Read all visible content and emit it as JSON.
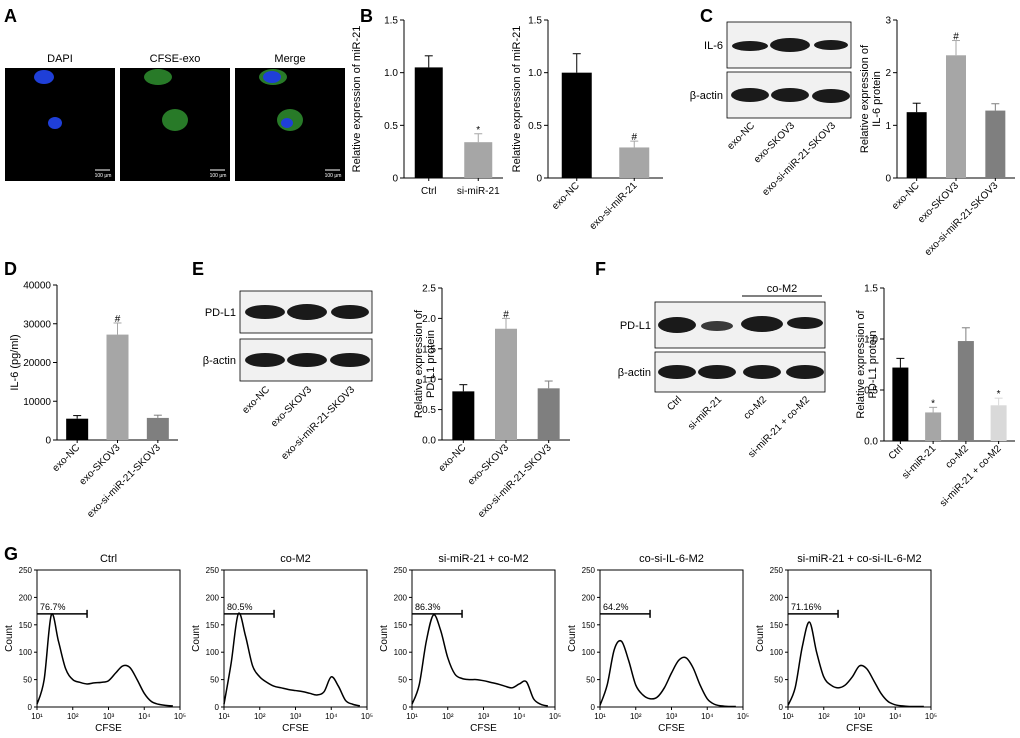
{
  "panels": {
    "A": {
      "letter": "A",
      "images": [
        {
          "label": "DAPI",
          "scale_label": "100 μm"
        },
        {
          "label": "CFSE-exo",
          "scale_label": "100 μm"
        },
        {
          "label": "Merge",
          "scale_label": "100 μm"
        }
      ]
    },
    "B": {
      "letter": "B"
    },
    "C": {
      "letter": "C",
      "blot": {
        "bands": [
          "IL-6",
          "β-actin"
        ],
        "lanes": [
          "exo-NC",
          "exo-SKOV3",
          "exo-si-miR-21-SKOV3"
        ]
      }
    },
    "D": {
      "letter": "D"
    },
    "E": {
      "letter": "E",
      "blot": {
        "bands": [
          "PD-L1",
          "β-actin"
        ],
        "lanes": [
          "exo-NC",
          "exo-SKOV3",
          "exo-si-miR-21-SKOV3"
        ]
      }
    },
    "F": {
      "letter": "F",
      "blot": {
        "bands": [
          "PD-L1",
          "β-actin"
        ],
        "lanes": [
          "Ctrl",
          "si-miR-21",
          "co-M2",
          "si-miR-21 + co-M2"
        ],
        "bracket_label": "co-M2"
      }
    },
    "G": {
      "letter": "G"
    }
  },
  "colors": {
    "black": "#000000",
    "gray1": "#a6a6a6",
    "gray2": "#7f7f7f",
    "gray3": "#d9d9d9",
    "dapi": "#1f3fd8",
    "cfse": "#3fb03f",
    "blot_bg": "#f1f1f1",
    "band": "#1a1a1a"
  },
  "chart_data": [
    {
      "id": "B1",
      "type": "bar",
      "ylabel": "Relative expression of miR-21",
      "categories": [
        "Ctrl",
        "si-miR-21"
      ],
      "values": [
        1.05,
        0.34
      ],
      "errors": [
        0.11,
        0.08
      ],
      "bar_colors": [
        "black",
        "gray1"
      ],
      "annotations": [
        "",
        "*"
      ],
      "ylim": [
        0,
        1.5
      ],
      "yticks": [
        "0",
        "0.5",
        "1.0",
        "1.5"
      ],
      "rotate_labels": false
    },
    {
      "id": "B2",
      "type": "bar",
      "ylabel": "Relative expression of miR-21",
      "categories": [
        "exo-NC",
        "exo-si-miR-21"
      ],
      "values": [
        1.0,
        0.29
      ],
      "errors": [
        0.18,
        0.06
      ],
      "bar_colors": [
        "black",
        "gray1"
      ],
      "annotations": [
        "",
        "#"
      ],
      "ylim": [
        0,
        1.5
      ],
      "yticks": [
        "0",
        "0.5",
        "1.0",
        "1.5"
      ],
      "rotate_labels": true
    },
    {
      "id": "C",
      "type": "bar",
      "ylabel": "Relative expression of IL-6 protein",
      "categories": [
        "exo-NC",
        "exo-SKOV3",
        "exo-si-miR-21-SKOV3"
      ],
      "values": [
        1.25,
        2.33,
        1.28
      ],
      "errors": [
        0.17,
        0.28,
        0.13
      ],
      "bar_colors": [
        "black",
        "gray1",
        "gray2"
      ],
      "annotations": [
        "",
        "#",
        ""
      ],
      "ylim": [
        0,
        3
      ],
      "yticks": [
        "0",
        "1",
        "2",
        "3"
      ],
      "rotate_labels": true
    },
    {
      "id": "D",
      "type": "bar",
      "ylabel": "IL-6 (pg/ml)",
      "categories": [
        "exo-NC",
        "exo-SKOV3",
        "exo-si-miR-21-SKOV3"
      ],
      "values": [
        5500,
        27200,
        5700
      ],
      "errors": [
        800,
        3000,
        700
      ],
      "bar_colors": [
        "black",
        "gray1",
        "gray2"
      ],
      "annotations": [
        "",
        "#",
        ""
      ],
      "ylim": [
        0,
        40000
      ],
      "yticks": [
        "0",
        "10000",
        "20000",
        "30000",
        "40000"
      ],
      "rotate_labels": true
    },
    {
      "id": "E",
      "type": "bar",
      "ylabel": "Relative expression of PD-L1 protein",
      "categories": [
        "exo-NC",
        "exo-SKOV3",
        "exo-si-miR-21-SKOV3"
      ],
      "values": [
        0.8,
        1.83,
        0.85
      ],
      "errors": [
        0.11,
        0.17,
        0.12
      ],
      "bar_colors": [
        "black",
        "gray1",
        "gray2"
      ],
      "annotations": [
        "",
        "#",
        ""
      ],
      "ylim": [
        0,
        2.5
      ],
      "yticks": [
        "0.0",
        "0.5",
        "1.0",
        "1.5",
        "2.0",
        "2.5"
      ],
      "rotate_labels": true
    },
    {
      "id": "F",
      "type": "bar",
      "ylabel": "Relative expression of PD-L1 protein",
      "categories": [
        "Ctrl",
        "si-miR-21",
        "co-M2",
        "si-miR-21 + co-M2"
      ],
      "values": [
        0.72,
        0.28,
        0.98,
        0.35
      ],
      "errors": [
        0.09,
        0.05,
        0.13,
        0.07
      ],
      "bar_colors": [
        "black",
        "gray1",
        "gray2",
        "gray3"
      ],
      "annotations": [
        "",
        "*",
        "",
        "*"
      ],
      "ylim": [
        0,
        1.5
      ],
      "yticks": [
        "0.0",
        "0.5",
        "1.0",
        "1.5"
      ],
      "rotate_labels": true
    },
    {
      "id": "G1",
      "type": "line",
      "title": "Ctrl",
      "gate_label": "76.7%",
      "xlabel": "CFSE",
      "ylabel": "Count",
      "x": [
        1,
        1.2,
        1.4,
        1.6,
        1.8,
        2.0,
        2.2,
        2.4,
        2.6,
        2.8,
        3.0,
        3.2,
        3.4,
        3.6,
        3.8,
        4.0,
        4.2,
        4.4,
        4.6,
        4.8
      ],
      "y": [
        5,
        50,
        168,
        120,
        70,
        50,
        45,
        42,
        44,
        45,
        48,
        62,
        75,
        72,
        50,
        25,
        10,
        5,
        3,
        2
      ],
      "xlim": [
        1,
        5
      ],
      "ylim": [
        0,
        250
      ],
      "yticks": [
        "0",
        "50",
        "100",
        "150",
        "200",
        "250"
      ],
      "xticks": [
        "10¹",
        "10²",
        "10³",
        "10⁴",
        "10⁵"
      ]
    },
    {
      "id": "G2",
      "type": "line",
      "title": "co-M2",
      "gate_label": "80.5%",
      "xlabel": "CFSE",
      "ylabel": "Count",
      "x": [
        1,
        1.2,
        1.4,
        1.6,
        1.8,
        2.0,
        2.2,
        2.4,
        2.6,
        2.8,
        3.0,
        3.2,
        3.4,
        3.6,
        3.8,
        4.0,
        4.2,
        4.4,
        4.6,
        4.8
      ],
      "y": [
        5,
        80,
        170,
        130,
        75,
        55,
        45,
        38,
        35,
        32,
        30,
        28,
        25,
        22,
        28,
        55,
        38,
        12,
        5,
        2
      ],
      "xlim": [
        1,
        5
      ],
      "ylim": [
        0,
        250
      ],
      "yticks": [
        "0",
        "50",
        "100",
        "150",
        "200",
        "250"
      ],
      "xticks": [
        "10¹",
        "10²",
        "10³",
        "10⁴",
        "10⁵"
      ]
    },
    {
      "id": "G3",
      "type": "line",
      "title": "si-miR-21 + co-M2",
      "gate_label": "86.3%",
      "xlabel": "CFSE",
      "ylabel": "Count",
      "x": [
        1,
        1.2,
        1.4,
        1.6,
        1.8,
        2.0,
        2.2,
        2.4,
        2.6,
        2.8,
        3.0,
        3.2,
        3.4,
        3.6,
        3.8,
        4.0,
        4.2,
        4.4,
        4.6,
        4.8
      ],
      "y": [
        5,
        40,
        120,
        168,
        140,
        90,
        60,
        52,
        50,
        50,
        48,
        45,
        42,
        38,
        35,
        42,
        46,
        15,
        5,
        2
      ],
      "xlim": [
        1,
        5
      ],
      "ylim": [
        0,
        250
      ],
      "yticks": [
        "0",
        "50",
        "100",
        "150",
        "200",
        "250"
      ],
      "xticks": [
        "10¹",
        "10²",
        "10³",
        "10⁴",
        "10⁵"
      ]
    },
    {
      "id": "G4",
      "type": "line",
      "title": "co-si-IL-6-M2",
      "gate_label": "64.2%",
      "xlabel": "CFSE",
      "ylabel": "Count",
      "x": [
        1,
        1.2,
        1.4,
        1.6,
        1.8,
        2.0,
        2.2,
        2.4,
        2.6,
        2.8,
        3.0,
        3.2,
        3.4,
        3.6,
        3.8,
        4.0,
        4.2,
        4.4,
        4.6,
        4.8
      ],
      "y": [
        3,
        40,
        105,
        120,
        85,
        40,
        22,
        15,
        18,
        35,
        62,
        85,
        90,
        72,
        40,
        15,
        5,
        2,
        1,
        1
      ],
      "xlim": [
        1,
        5
      ],
      "ylim": [
        0,
        250
      ],
      "yticks": [
        "0",
        "50",
        "100",
        "150",
        "200",
        "250"
      ],
      "xticks": [
        "10¹",
        "10²",
        "10³",
        "10⁴",
        "10⁵"
      ]
    },
    {
      "id": "G5",
      "type": "line",
      "title": "si-miR-21 + co-si-IL-6-M2",
      "gate_label": "71.16%",
      "xlabel": "CFSE",
      "ylabel": "Count",
      "x": [
        1,
        1.2,
        1.4,
        1.6,
        1.8,
        2.0,
        2.2,
        2.4,
        2.6,
        2.8,
        3.0,
        3.2,
        3.4,
        3.6,
        3.8,
        4.0,
        4.2,
        4.4,
        4.6,
        4.8
      ],
      "y": [
        3,
        35,
        110,
        155,
        100,
        55,
        40,
        35,
        40,
        55,
        75,
        70,
        48,
        25,
        10,
        4,
        2,
        1,
        1,
        1
      ],
      "xlim": [
        1,
        5
      ],
      "ylim": [
        0,
        250
      ],
      "yticks": [
        "0",
        "50",
        "100",
        "150",
        "200",
        "250"
      ],
      "xticks": [
        "10¹",
        "10²",
        "10³",
        "10⁴",
        "10⁵"
      ]
    }
  ]
}
